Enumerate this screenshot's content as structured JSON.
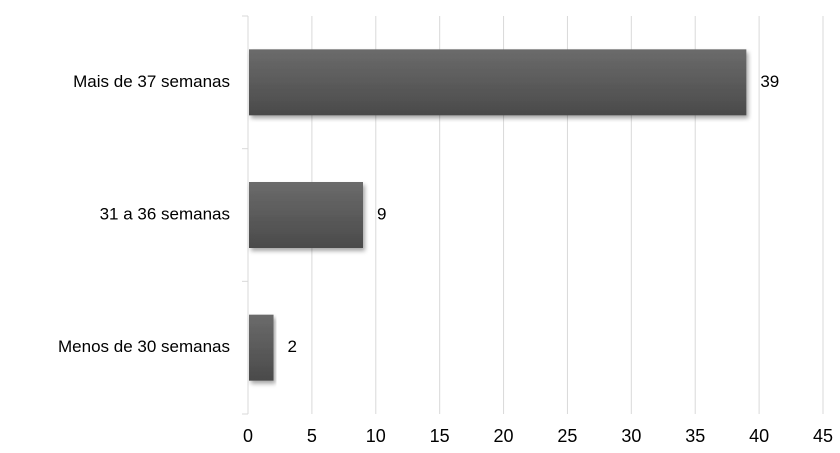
{
  "chart_data": {
    "type": "bar",
    "orientation": "horizontal",
    "categories": [
      "Mais de 37 semanas",
      "31 a 36 semanas",
      "Menos de 30 semanas"
    ],
    "values": [
      39,
      9,
      2
    ],
    "data_labels": [
      "39",
      "9",
      "2"
    ],
    "x_ticks": [
      "0",
      "5",
      "10",
      "15",
      "20",
      "25",
      "30",
      "35",
      "40",
      "45"
    ],
    "xlim": [
      0,
      45
    ],
    "grid": "vertical",
    "legend": "none",
    "bar_color": "#5a5a5a"
  }
}
